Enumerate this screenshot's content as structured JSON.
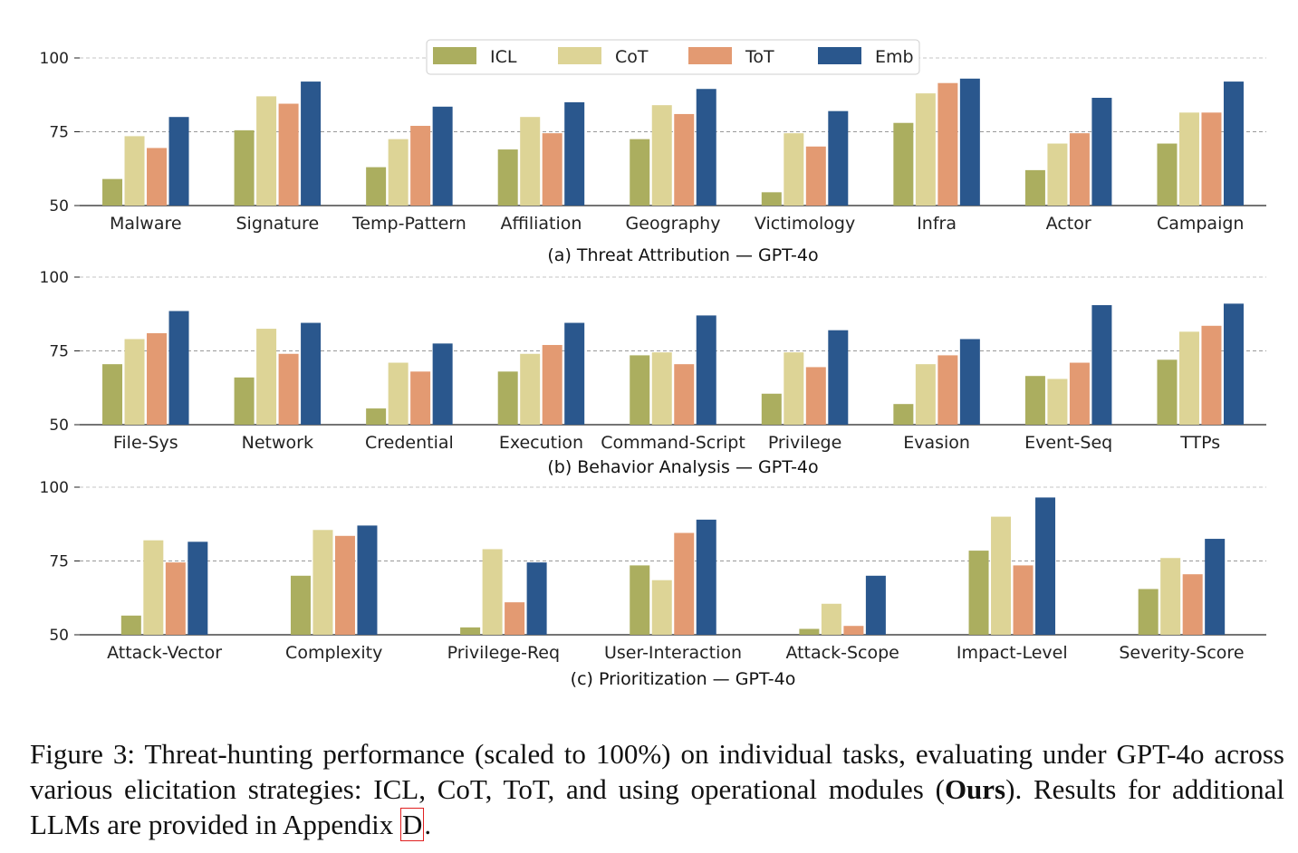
{
  "legend": {
    "items": [
      {
        "label": "ICL",
        "color": "#abae5f"
      },
      {
        "label": "CoT",
        "color": "#ddd496"
      },
      {
        "label": "ToT",
        "color": "#e39a72"
      },
      {
        "label": "Emb",
        "color": "#2a578d"
      }
    ],
    "placement": "top-center"
  },
  "chart_data": [
    {
      "type": "bar",
      "title": "(a) Threat Attribution — GPT-4o",
      "ylim": [
        50,
        100
      ],
      "yticks": [
        "50",
        "75",
        "100"
      ],
      "categories": [
        "Malware",
        "Signature",
        "Temp-Pattern",
        "Affiliation",
        "Geography",
        "Victimology",
        "Infra",
        "Actor",
        "Campaign"
      ],
      "series": [
        {
          "name": "ICL",
          "values": [
            59,
            75.5,
            63,
            69,
            72.5,
            54.5,
            78,
            62,
            71
          ]
        },
        {
          "name": "CoT",
          "values": [
            73.5,
            87,
            72.5,
            80,
            84,
            74.5,
            88,
            71,
            81.5
          ]
        },
        {
          "name": "ToT",
          "values": [
            69.5,
            84.5,
            77,
            74.5,
            81,
            70,
            91.5,
            74.5,
            81.5
          ]
        },
        {
          "name": "Emb",
          "values": [
            80,
            92,
            83.5,
            85,
            89.5,
            82,
            93,
            86.5,
            92
          ]
        }
      ]
    },
    {
      "type": "bar",
      "title": "(b) Behavior Analysis — GPT-4o",
      "ylim": [
        50,
        100
      ],
      "yticks": [
        "50",
        "75",
        "100"
      ],
      "categories": [
        "File-Sys",
        "Network",
        "Credential",
        "Execution",
        "Command-Script",
        "Privilege",
        "Evasion",
        "Event-Seq",
        "TTPs"
      ],
      "series": [
        {
          "name": "ICL",
          "values": [
            70.5,
            66,
            55.5,
            68,
            73.5,
            60.5,
            57,
            66.5,
            72
          ]
        },
        {
          "name": "CoT",
          "values": [
            79,
            82.5,
            71,
            74,
            74.5,
            74.5,
            70.5,
            65.5,
            81.5
          ]
        },
        {
          "name": "ToT",
          "values": [
            81,
            74,
            68,
            77,
            70.5,
            69.5,
            73.5,
            71,
            83.5
          ]
        },
        {
          "name": "Emb",
          "values": [
            88.5,
            84.5,
            77.5,
            84.5,
            87,
            82,
            79,
            90.5,
            91
          ]
        }
      ]
    },
    {
      "type": "bar",
      "title": "(c) Prioritization — GPT-4o",
      "ylim": [
        50,
        100
      ],
      "yticks": [
        "50",
        "75",
        "100"
      ],
      "categories": [
        "Attack-Vector",
        "Complexity",
        "Privilege-Req",
        "User-Interaction",
        "Attack-Scope",
        "Impact-Level",
        "Severity-Score"
      ],
      "series": [
        {
          "name": "ICL",
          "values": [
            56.5,
            70,
            52.5,
            73.5,
            52,
            78.5,
            65.5
          ]
        },
        {
          "name": "CoT",
          "values": [
            82,
            85.5,
            79,
            68.5,
            60.5,
            90,
            76
          ]
        },
        {
          "name": "ToT",
          "values": [
            74.5,
            83.5,
            61,
            84.5,
            53,
            73.5,
            70.5
          ]
        },
        {
          "name": "Emb",
          "values": [
            81.5,
            87,
            74.5,
            89,
            70,
            96.5,
            82.5
          ]
        }
      ]
    }
  ],
  "caption": {
    "prefix": "Figure 3: Threat-hunting performance (scaled to 100%) on individual tasks, evaluating under GPT-4o across various elicitation strategies: ICL, CoT, ToT, and using operational modules (",
    "bold": "Ours",
    "middle": "). Results for additional LLMs are provided in Appendix ",
    "ref": "D",
    "suffix": "."
  }
}
